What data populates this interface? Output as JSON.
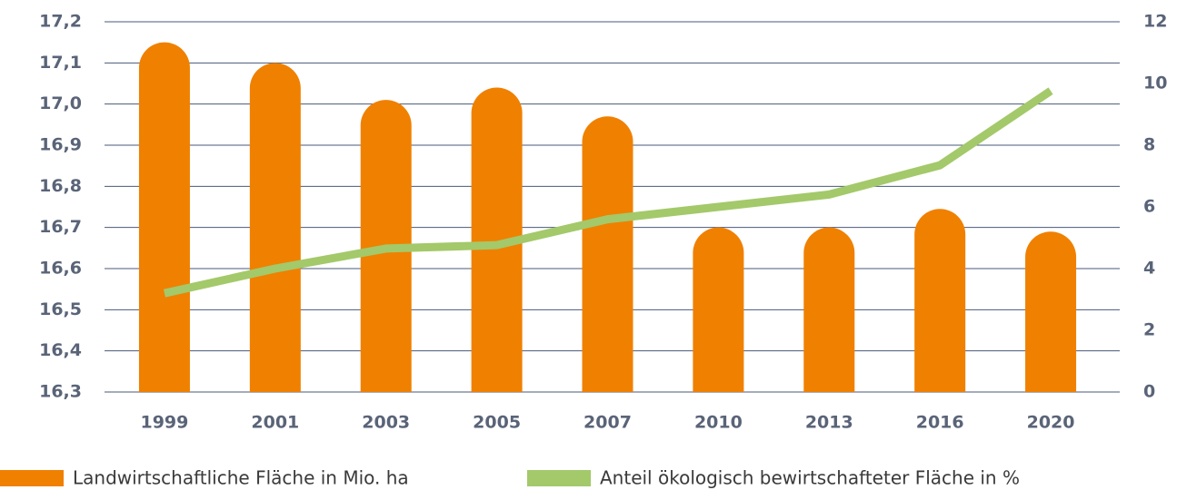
{
  "chart_data": {
    "type": "bar_line",
    "categories": [
      "1999",
      "2001",
      "2003",
      "2005",
      "2007",
      "2010",
      "2013",
      "2016",
      "2020"
    ],
    "series": [
      {
        "name": "Landwirtschaftliche Fläche in Mio. ha",
        "type": "bar",
        "color": "#f08000",
        "axis": "y",
        "values": [
          17.15,
          17.1,
          17.01,
          17.04,
          16.97,
          16.7,
          16.7,
          16.745,
          16.69
        ]
      },
      {
        "name": "Anteil ökologisch bewirtschafteter Fläche in %",
        "type": "line",
        "color": "#a3c96a",
        "axis": "y2",
        "values": [
          3.2,
          4.0,
          4.65,
          4.76,
          5.6,
          6.0,
          6.4,
          7.35,
          9.76
        ]
      }
    ],
    "ylim": [
      16.3,
      17.2
    ],
    "yticks": [
      {
        "value": 16.3,
        "label": "16,3"
      },
      {
        "value": 16.4,
        "label": "16,4"
      },
      {
        "value": 16.5,
        "label": "16,5"
      },
      {
        "value": 16.6,
        "label": "16,6"
      },
      {
        "value": 16.7,
        "label": "16,7"
      },
      {
        "value": 16.8,
        "label": "16,8"
      },
      {
        "value": 16.9,
        "label": "16,9"
      },
      {
        "value": 17.0,
        "label": "17,0"
      },
      {
        "value": 17.1,
        "label": "17,1"
      },
      {
        "value": 17.2,
        "label": "17,2"
      }
    ],
    "y2lim": [
      0,
      12
    ],
    "y2ticks": [
      0,
      2,
      4,
      6,
      8,
      10,
      12
    ],
    "grid": true,
    "legend": "bottom"
  }
}
